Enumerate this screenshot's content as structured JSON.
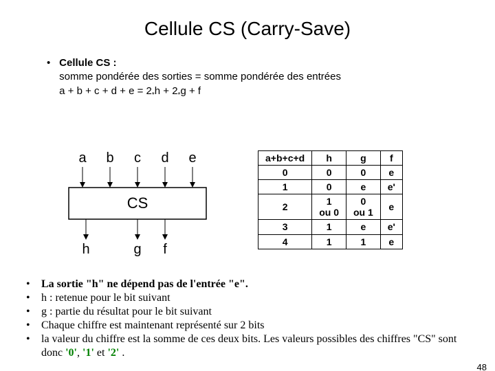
{
  "title": "Cellule CS (Carry-Save)",
  "intro": {
    "line1a": "Cellule CS :",
    "line2": "somme pondérée des sorties = somme pondérée des entrées",
    "line3_pre": "a + b + c + d + e = 2",
    "line3_mid": "h + 2",
    "line3_post": "g + f",
    "sub": "*"
  },
  "diagram": {
    "inputs": [
      "a",
      "b",
      "c",
      "d",
      "e"
    ],
    "box": "CS",
    "outputs": [
      "h",
      "g",
      "f"
    ],
    "font": 20
  },
  "table": {
    "headers": [
      "a+b+c+d",
      "h",
      "g",
      "f"
    ],
    "rows": [
      [
        "0",
        "0",
        "0",
        "e"
      ],
      [
        "1",
        "0",
        "e",
        "e'"
      ],
      [
        "2",
        "1\nou 0",
        "0\nou 1",
        "e"
      ],
      [
        "3",
        "1",
        "e",
        "e'"
      ],
      [
        "4",
        "1",
        "1",
        "e"
      ]
    ]
  },
  "bullets": [
    {
      "bold": true,
      "text": "La sortie \"h\" ne dépend pas de l'entrée \"e\"."
    },
    {
      "bold": false,
      "text": "h : retenue pour le bit suivant"
    },
    {
      "bold": false,
      "text": "g : partie du résultat pour le bit suivant"
    },
    {
      "bold": false,
      "text": "Chaque chiffre est maintenant représenté sur 2 bits"
    }
  ],
  "last_bullet": {
    "pre": "la valeur du chiffre est la somme de ces deux bits. Les valeurs possibles des chiffres \"CS\" sont donc ",
    "v0": "'0'",
    "sep1": ", ",
    "v1": "'1'",
    "sep2": " et ",
    "v2": "'2'",
    "post": " ."
  },
  "page": "48",
  "colors": {
    "green": "#008000"
  }
}
